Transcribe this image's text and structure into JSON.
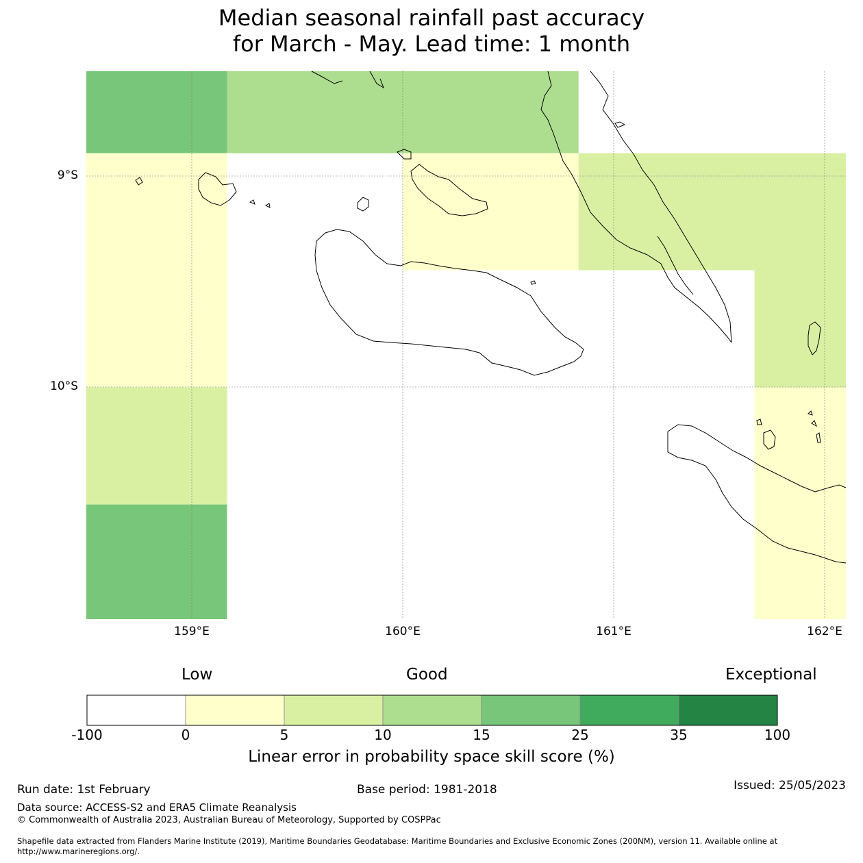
{
  "title": {
    "line1": "Median seasonal rainfall past accuracy",
    "line2": "for March - May. Lead time: 1 month"
  },
  "map": {
    "lat_labels": [
      "9°S",
      "10°S"
    ],
    "lon_labels": [
      "159°E",
      "160°E",
      "161°E",
      "162°E"
    ],
    "extent": {
      "lon_min": 158.5,
      "lon_max": 162.1,
      "lat_top": -8.5,
      "lat_bottom": -11.1
    },
    "grid_cells": [
      {
        "lon_min": 158.5,
        "lon_max": 159.167,
        "lat_max": -8.5,
        "lat_min": -8.889,
        "category": "15 to 25"
      },
      {
        "lon_min": 159.167,
        "lon_max": 160.833,
        "lat_max": -8.5,
        "lat_min": -8.889,
        "category": "10 to 15"
      },
      {
        "lon_min": 158.5,
        "lon_max": 159.167,
        "lat_max": -8.889,
        "lat_min": -10.0,
        "category": "0 to 5"
      },
      {
        "lon_min": 160.0,
        "lon_max": 160.833,
        "lat_max": -8.889,
        "lat_min": -9.444,
        "category": "0 to 5"
      },
      {
        "lon_min": 160.833,
        "lon_max": 162.1,
        "lat_max": -8.889,
        "lat_min": -9.444,
        "category": "5 to 10"
      },
      {
        "lon_min": 161.667,
        "lon_max": 162.1,
        "lat_max": -9.444,
        "lat_min": -10.0,
        "category": "5 to 10"
      },
      {
        "lon_min": 161.667,
        "lon_max": 162.1,
        "lat_max": -10.0,
        "lat_min": -11.1,
        "category": "0 to 5"
      },
      {
        "lon_min": 158.5,
        "lon_max": 159.167,
        "lat_max": -10.0,
        "lat_min": -10.556,
        "category": "5 to 10"
      },
      {
        "lon_min": 158.5,
        "lon_max": 159.167,
        "lat_max": -10.556,
        "lat_min": -11.1,
        "category": "15 to 25"
      }
    ]
  },
  "legend": {
    "categories": [
      "Low",
      "Good",
      "Exceptional"
    ],
    "bins": [
      {
        "from": -100,
        "to": 0,
        "color": "#ffffff"
      },
      {
        "from": 0,
        "to": 5,
        "color": "#ffffcc"
      },
      {
        "from": 5,
        "to": 10,
        "color": "#d9f0a3"
      },
      {
        "from": 10,
        "to": 15,
        "color": "#addd8e"
      },
      {
        "from": 15,
        "to": 25,
        "color": "#78c679"
      },
      {
        "from": 25,
        "to": 35,
        "color": "#41ab5d"
      },
      {
        "from": 35,
        "to": 100,
        "color": "#238443"
      }
    ],
    "tick_labels": [
      "-100",
      "0",
      "5",
      "10",
      "15",
      "25",
      "35",
      "100"
    ],
    "axis_label": "Linear error in probability space skill score (%)"
  },
  "footer": {
    "run_date": "Run date: 1st February",
    "base_period": "Base period: 1981-2018",
    "issued": "Issued: 25/05/2023",
    "data_source": "Data source: ACCESS-S2 and ERA5 Climate Reanalysis",
    "copyright": "© Commonwealth of Australia 2023, Australian Bureau of Meteorology, Supported by COSPPac",
    "shapefile_line1": "Shapefile data extracted from Flanders Marine Institute (2019), Maritime Boundaries Geodatabase: Maritime Boundaries and Exclusive Economic Zones (200NM), version 11. Available online at",
    "shapefile_line2": "http://www.marineregions.org/."
  }
}
